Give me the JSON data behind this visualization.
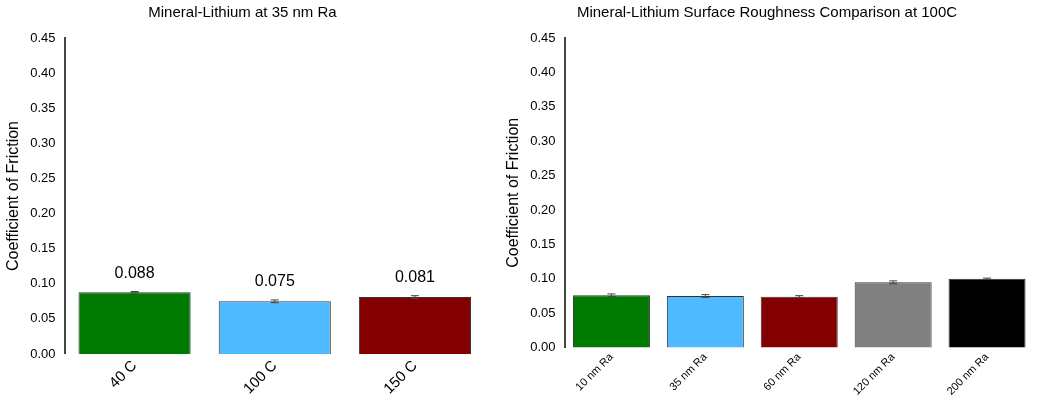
{
  "chart_data": [
    {
      "type": "bar",
      "title": "Mineral-Lithium at 35 nm Ra",
      "ylabel": "Coefficient of Friction",
      "categories": [
        "40 C",
        "100 C",
        "150 C"
      ],
      "values": [
        0.088,
        0.075,
        0.081
      ],
      "colors": [
        "#007a00",
        "#4fbaff",
        "#820000"
      ],
      "errors": [
        0.001,
        0.002,
        0.002
      ],
      "data_labels": true,
      "ylim": [
        0,
        0.45
      ],
      "yticks": [
        {
          "value": 0,
          "label": "0.00"
        },
        {
          "value": 0.05,
          "label": "0.05"
        },
        {
          "value": 0.1,
          "label": "0.10"
        },
        {
          "value": 0.15,
          "label": "0.15"
        },
        {
          "value": 0.2,
          "label": "0.20"
        },
        {
          "value": 0.25,
          "label": "0.25"
        },
        {
          "value": 0.3,
          "label": "0.30"
        },
        {
          "value": 0.35,
          "label": "0.35"
        },
        {
          "value": 0.4,
          "label": "0.40"
        },
        {
          "value": 0.45,
          "label": "0.45"
        }
      ],
      "grid": false,
      "legend": false
    },
    {
      "type": "bar",
      "title": "Mineral-Lithium Surface Roughness Comparison at 100C",
      "ylabel": "Coefficient of Friction",
      "categories": [
        "10 nm Ra",
        "35 nm Ra",
        "60 nm Ra",
        "120 nm Ra",
        "200 nm Ra"
      ],
      "values": [
        0.076,
        0.075,
        0.074,
        0.095,
        0.1
      ],
      "colors": [
        "#007a00",
        "#4fbaff",
        "#820000",
        "#808080",
        "#000000"
      ],
      "errors": [
        0.002,
        0.002,
        0.0015,
        0.002,
        0.001
      ],
      "ylim": [
        0,
        0.45
      ],
      "yticks": [
        {
          "value": 0,
          "label": "0.00"
        },
        {
          "value": 0.05,
          "label": "0.05"
        },
        {
          "value": 0.1,
          "label": "0.10"
        },
        {
          "value": 0.15,
          "label": "0.15"
        },
        {
          "value": 0.2,
          "label": "0.20"
        },
        {
          "value": 0.25,
          "label": "0.25"
        },
        {
          "value": 0.3,
          "label": "0.30"
        },
        {
          "value": 0.35,
          "label": "0.35"
        },
        {
          "value": 0.4,
          "label": "0.40"
        },
        {
          "value": 0.45,
          "label": "0.45"
        }
      ],
      "grid": false,
      "legend": false
    }
  ]
}
